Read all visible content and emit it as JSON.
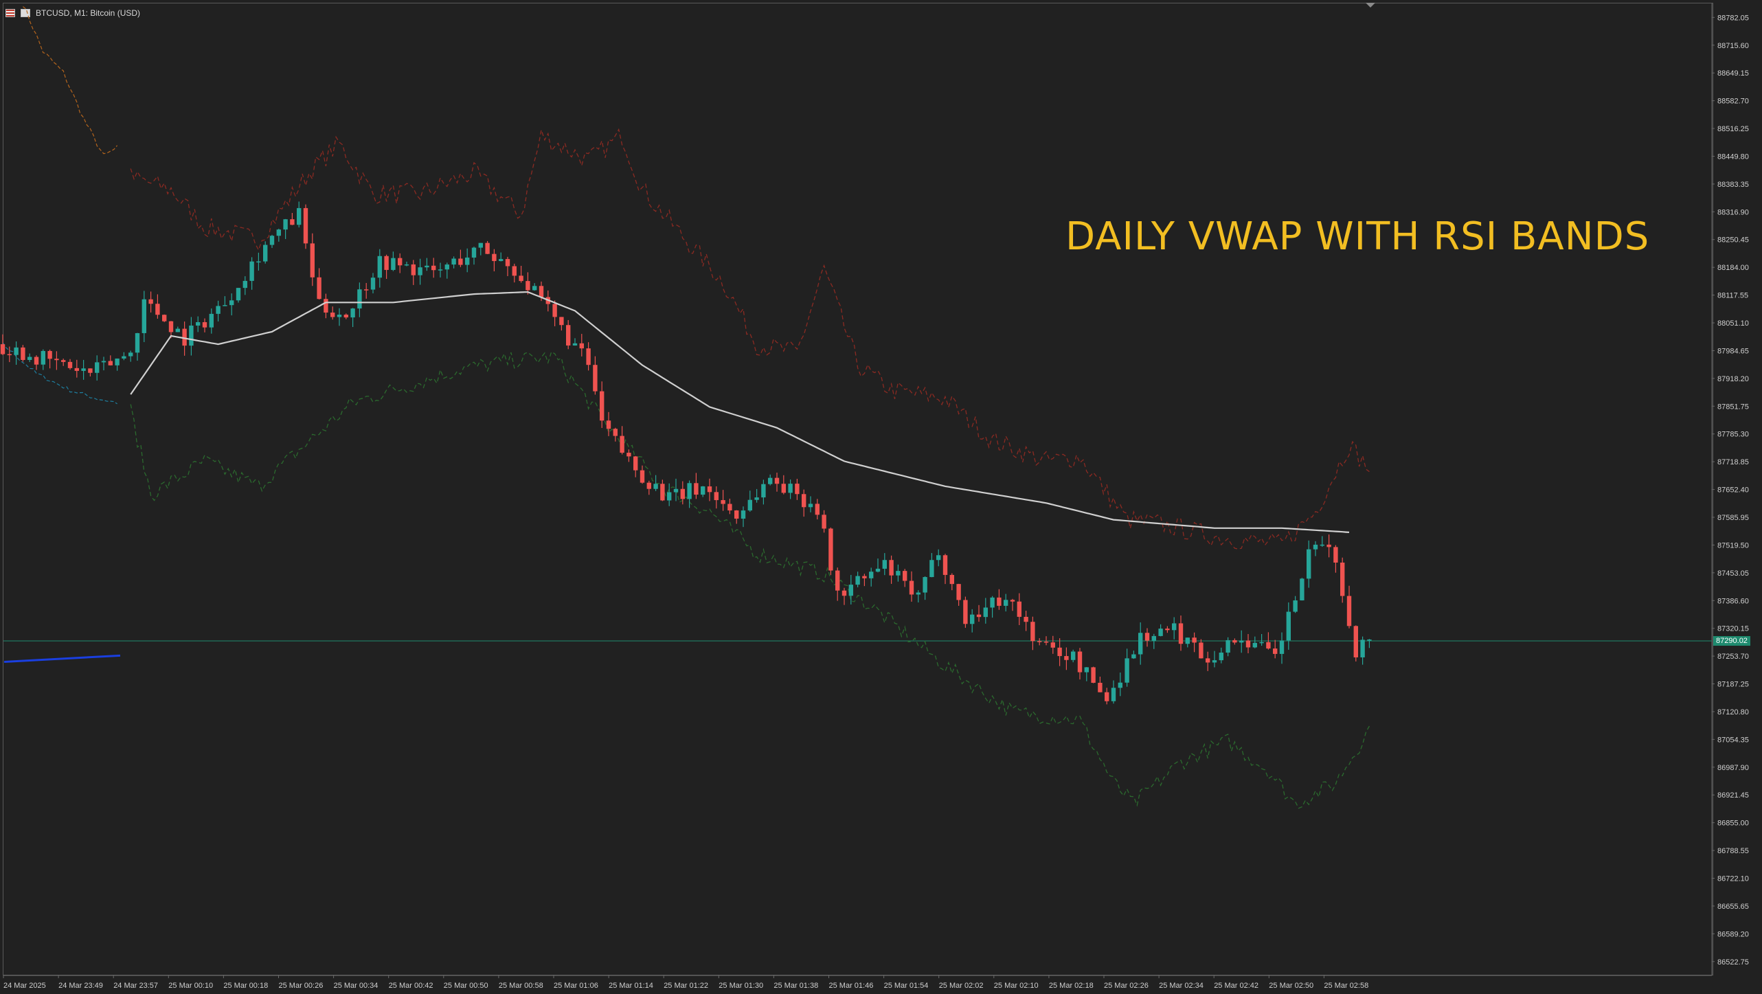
{
  "header": {
    "title": "BTCUSD, M1:  Bitcoin (USD)",
    "icons": [
      "flag-icon",
      "chart-type-icon"
    ]
  },
  "overlay_title": "DAILY VWAP WITH RSI BANDS",
  "current_price": "87290.02",
  "colors": {
    "background": "#212121",
    "bull": "#26a69a",
    "bear": "#ef5350",
    "vwap": "#d0d0d0",
    "upper_band": "#8b2a22",
    "lower_band": "#2b6a2e",
    "prev_upper": "#b5651d",
    "prev_lower": "#1e7fa0",
    "title": "#f2be22",
    "axis_text": "#cfcfcf",
    "price_line": "#1e8a6e",
    "blue_line": "#1a3fe0"
  },
  "chart_data": {
    "type": "candlestick",
    "symbol": "BTCUSD",
    "timeframe": "M1",
    "ylim": [
      86489.5,
      88815.5
    ],
    "y_ticks": [
      "88782.05",
      "88715.60",
      "88649.15",
      "88582.70",
      "88516.25",
      "88449.80",
      "88383.35",
      "88316.90",
      "88250.45",
      "88184.00",
      "88117.55",
      "88051.10",
      "87984.65",
      "87918.20",
      "87851.75",
      "87785.30",
      "87718.85",
      "87652.40",
      "87585.95",
      "87519.50",
      "87453.05",
      "87386.60",
      "87320.15",
      "87253.70",
      "87187.25",
      "87120.80",
      "87054.35",
      "86987.90",
      "86921.45",
      "86855.00",
      "86788.55",
      "86722.10",
      "86655.65",
      "86589.20",
      "86522.75"
    ],
    "x_ticks": [
      "24 Mar 2025",
      "24 Mar 23:49",
      "24 Mar 23:57",
      "25 Mar 00:10",
      "25 Mar 00:18",
      "25 Mar 00:26",
      "25 Mar 00:34",
      "25 Mar 00:42",
      "25 Mar 00:50",
      "25 Mar 00:58",
      "25 Mar 01:06",
      "25 Mar 01:14",
      "25 Mar 01:22",
      "25 Mar 01:30",
      "25 Mar 01:38",
      "25 Mar 01:46",
      "25 Mar 01:54",
      "25 Mar 02:02",
      "25 Mar 02:10",
      "25 Mar 02:18",
      "25 Mar 02:26",
      "25 Mar 02:34",
      "25 Mar 02:42",
      "25 Mar 02:50",
      "25 Mar 02:58"
    ],
    "price_anchors": [
      [
        0,
        88000
      ],
      [
        8,
        87960
      ],
      [
        14,
        87930
      ],
      [
        20,
        87980
      ],
      [
        22,
        88105
      ],
      [
        28,
        88015
      ],
      [
        34,
        88100
      ],
      [
        40,
        88240
      ],
      [
        45,
        88310
      ],
      [
        48,
        88090
      ],
      [
        52,
        88070
      ],
      [
        57,
        88200
      ],
      [
        65,
        88170
      ],
      [
        72,
        88230
      ],
      [
        77,
        88180
      ],
      [
        82,
        88080
      ],
      [
        88,
        87950
      ],
      [
        90,
        87810
      ],
      [
        95,
        87700
      ],
      [
        100,
        87630
      ],
      [
        105,
        87660
      ],
      [
        110,
        87590
      ],
      [
        115,
        87680
      ],
      [
        122,
        87610
      ],
      [
        125,
        87400
      ],
      [
        132,
        87470
      ],
      [
        137,
        87390
      ],
      [
        140,
        87510
      ],
      [
        144,
        87340
      ],
      [
        150,
        87400
      ],
      [
        155,
        87280
      ],
      [
        160,
        87250
      ],
      [
        165,
        87150
      ],
      [
        170,
        87300
      ],
      [
        175,
        87315
      ],
      [
        180,
        87250
      ],
      [
        185,
        87300
      ],
      [
        190,
        87250
      ],
      [
        195,
        87490
      ],
      [
        198,
        87530
      ],
      [
        202,
        87270
      ],
      [
        203,
        87285
      ]
    ],
    "vwap_anchors": [
      [
        19,
        87880
      ],
      [
        25,
        88020
      ],
      [
        32,
        88000
      ],
      [
        40,
        88030
      ],
      [
        48,
        88100
      ],
      [
        58,
        88100
      ],
      [
        70,
        88120
      ],
      [
        78,
        88125
      ],
      [
        85,
        88080
      ],
      [
        95,
        87950
      ],
      [
        105,
        87850
      ],
      [
        115,
        87800
      ],
      [
        125,
        87720
      ],
      [
        140,
        87660
      ],
      [
        155,
        87620
      ],
      [
        165,
        87580
      ],
      [
        180,
        87560
      ],
      [
        190,
        87560
      ],
      [
        195,
        87555
      ],
      [
        200,
        87550
      ]
    ],
    "upper_band_anchors": [
      [
        19,
        88400
      ],
      [
        25,
        88370
      ],
      [
        30,
        88280
      ],
      [
        38,
        88250
      ],
      [
        46,
        88420
      ],
      [
        50,
        88480
      ],
      [
        55,
        88360
      ],
      [
        62,
        88360
      ],
      [
        70,
        88410
      ],
      [
        77,
        88310
      ],
      [
        80,
        88500
      ],
      [
        87,
        88440
      ],
      [
        92,
        88500
      ],
      [
        95,
        88370
      ],
      [
        102,
        88240
      ],
      [
        107,
        88150
      ],
      [
        112,
        88000
      ],
      [
        118,
        87980
      ],
      [
        122,
        88180
      ],
      [
        127,
        87950
      ],
      [
        132,
        87890
      ],
      [
        140,
        87870
      ],
      [
        147,
        87770
      ],
      [
        155,
        87720
      ],
      [
        160,
        87730
      ],
      [
        167,
        87580
      ],
      [
        172,
        87570
      ],
      [
        180,
        87540
      ],
      [
        190,
        87520
      ],
      [
        195,
        87600
      ],
      [
        200,
        87760
      ],
      [
        203,
        87700
      ]
    ],
    "lower_band_anchors": [
      [
        19,
        87840
      ],
      [
        22,
        87640
      ],
      [
        30,
        87720
      ],
      [
        38,
        87660
      ],
      [
        45,
        87760
      ],
      [
        52,
        87860
      ],
      [
        60,
        87900
      ],
      [
        68,
        87940
      ],
      [
        75,
        87960
      ],
      [
        82,
        87970
      ],
      [
        90,
        87800
      ],
      [
        98,
        87660
      ],
      [
        105,
        87600
      ],
      [
        112,
        87500
      ],
      [
        122,
        87450
      ],
      [
        130,
        87360
      ],
      [
        140,
        87230
      ],
      [
        150,
        87120
      ],
      [
        160,
        87100
      ],
      [
        165,
        86950
      ],
      [
        168,
        86900
      ],
      [
        175,
        87000
      ],
      [
        182,
        87050
      ],
      [
        188,
        86980
      ],
      [
        192,
        86900
      ],
      [
        198,
        86950
      ],
      [
        203,
        87080
      ]
    ],
    "prev_upper_anchors": [
      [
        3,
        88815
      ],
      [
        6,
        88700
      ],
      [
        9,
        88650
      ],
      [
        12,
        88540
      ],
      [
        15,
        88450
      ],
      [
        17,
        88470
      ]
    ],
    "prev_lower_anchors": [
      [
        0,
        88000
      ],
      [
        5,
        87930
      ],
      [
        10,
        87890
      ],
      [
        14,
        87870
      ],
      [
        17,
        87860
      ]
    ]
  }
}
